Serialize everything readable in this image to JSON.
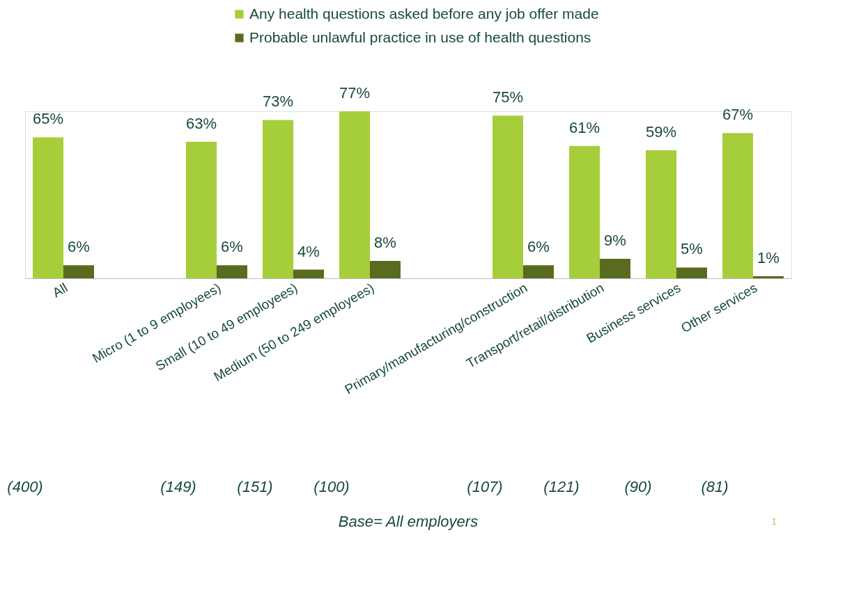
{
  "chart_data": {
    "type": "bar",
    "categories": [
      "All",
      null,
      "Micro (1 to 9 employees)",
      "Small (10 to 49 employees)",
      "Medium (50 to 249 employees)",
      null,
      "Primary/manufacturing/construction",
      "Transport/retail/distribution",
      "Business services",
      "Other services"
    ],
    "series": [
      {
        "name": "Any health questions asked before any job offer made",
        "color": "#a6cd3a",
        "values": [
          65,
          null,
          63,
          73,
          77,
          null,
          75,
          61,
          59,
          67
        ],
        "value_labels": [
          "65%",
          null,
          "63%",
          "73%",
          "77%",
          null,
          "75%",
          "61%",
          "59%",
          "67%"
        ]
      },
      {
        "name": "Probable unlawful practice in use of health questions",
        "color": "#586b1e",
        "values": [
          6,
          null,
          6,
          4,
          8,
          null,
          6,
          9,
          5,
          1
        ],
        "value_labels": [
          "6%",
          null,
          "6%",
          "4%",
          "8%",
          null,
          "6%",
          "9%",
          "5%",
          "1%"
        ]
      }
    ],
    "annotations": [
      "(400)",
      "(149)",
      "(151)",
      "(100)",
      "(107)",
      "(121)",
      "(90)",
      "(81)",
      "Base= All employers",
      "1"
    ],
    "legend": "top",
    "grid": false
  }
}
